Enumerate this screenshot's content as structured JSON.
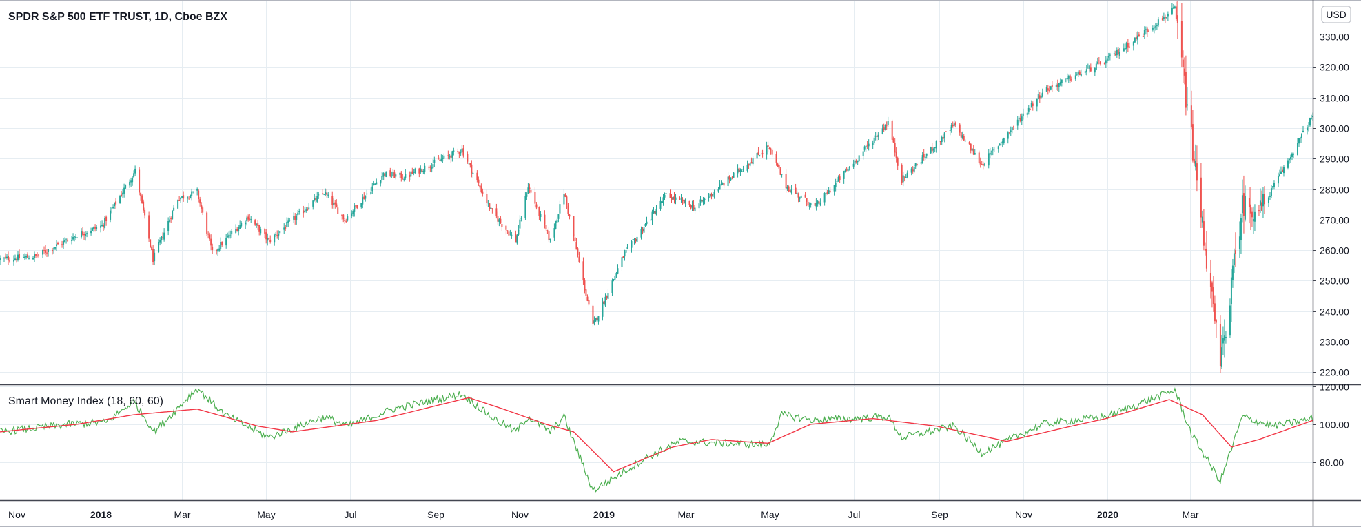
{
  "chart_data": [
    {
      "type": "candlestick",
      "title": "SPDR S&P 500 ETF TRUST, 1D, Cboe BZX",
      "currency": "USD",
      "y_ticks": [
        "330.00",
        "320.00",
        "310.00",
        "300.00",
        "290.00",
        "280.00",
        "270.00",
        "260.00",
        "250.00",
        "240.00",
        "230.00",
        "220.00"
      ],
      "ylim": [
        216,
        342
      ],
      "x_ticks": [
        "Nov",
        "2018",
        "Mar",
        "May",
        "Jul",
        "Sep",
        "Nov",
        "2019",
        "Mar",
        "May",
        "Jul",
        "Sep",
        "Nov",
        "2020",
        "Mar"
      ],
      "xlim": [
        "2017-10-20",
        "2020-05-29"
      ],
      "up_color": "#26a69a",
      "down_color": "#ef5350",
      "price_path": [
        [
          "2017-10-20",
          257
        ],
        [
          "2017-11-15",
          258
        ],
        [
          "2017-12-15",
          265
        ],
        [
          "2018-01-02",
          268
        ],
        [
          "2018-01-26",
          286
        ],
        [
          "2018-02-08",
          257
        ],
        [
          "2018-02-26",
          277
        ],
        [
          "2018-03-12",
          279
        ],
        [
          "2018-03-23",
          259
        ],
        [
          "2018-04-18",
          271
        ],
        [
          "2018-05-03",
          263
        ],
        [
          "2018-06-12",
          279
        ],
        [
          "2018-06-27",
          270
        ],
        [
          "2018-07-25",
          285
        ],
        [
          "2018-08-10",
          284
        ],
        [
          "2018-09-20",
          293
        ],
        [
          "2018-10-11",
          273
        ],
        [
          "2018-10-29",
          263
        ],
        [
          "2018-11-07",
          281
        ],
        [
          "2018-11-23",
          263
        ],
        [
          "2018-12-03",
          279
        ],
        [
          "2018-12-24",
          235
        ],
        [
          "2019-01-15",
          258
        ],
        [
          "2019-02-15",
          278
        ],
        [
          "2019-03-08",
          274
        ],
        [
          "2019-04-30",
          294
        ],
        [
          "2019-05-13",
          281
        ],
        [
          "2019-06-03",
          274
        ],
        [
          "2019-07-26",
          302
        ],
        [
          "2019-08-05",
          283
        ],
        [
          "2019-09-12",
          301
        ],
        [
          "2019-10-02",
          288
        ],
        [
          "2019-11-15",
          312
        ],
        [
          "2019-12-31",
          322
        ],
        [
          "2020-02-19",
          339
        ],
        [
          "2020-03-23",
          222
        ],
        [
          "2020-04-08",
          275
        ],
        [
          "2020-04-21",
          273
        ],
        [
          "2020-05-29",
          304
        ]
      ]
    },
    {
      "type": "line",
      "title": "Smart Money Index (18, 60, 60)",
      "y_ticks": [
        "120.00",
        "100.00",
        "80.00"
      ],
      "ylim": [
        60,
        121
      ],
      "series": [
        {
          "color": "#4caf50",
          "path": [
            [
              "2017-10-20",
              96
            ],
            [
              "2017-12-10",
              100
            ],
            [
              "2018-01-05",
              101
            ],
            [
              "2018-01-25",
              112
            ],
            [
              "2018-02-09",
              96
            ],
            [
              "2018-03-12",
              119
            ],
            [
              "2018-04-01",
              105
            ],
            [
              "2018-05-03",
              93
            ],
            [
              "2018-06-12",
              104
            ],
            [
              "2018-06-29",
              99
            ],
            [
              "2018-08-01",
              108
            ],
            [
              "2018-09-20",
              116
            ],
            [
              "2018-10-11",
              104
            ],
            [
              "2018-10-29",
              96
            ],
            [
              "2018-11-07",
              104
            ],
            [
              "2018-11-23",
              96
            ],
            [
              "2018-12-03",
              104
            ],
            [
              "2018-12-24",
              65
            ],
            [
              "2019-01-31",
              82
            ],
            [
              "2019-02-25",
              91
            ],
            [
              "2019-04-30",
              89
            ],
            [
              "2019-05-10",
              105
            ],
            [
              "2019-06-03",
              102
            ],
            [
              "2019-07-26",
              104
            ],
            [
              "2019-08-05",
              93
            ],
            [
              "2019-09-12",
              99
            ],
            [
              "2019-10-02",
              85
            ],
            [
              "2019-11-15",
              100
            ],
            [
              "2019-12-31",
              104
            ],
            [
              "2020-02-19",
              118
            ],
            [
              "2020-03-02",
              95
            ],
            [
              "2020-03-23",
              70
            ],
            [
              "2020-04-08",
              104
            ],
            [
              "2020-04-30",
              99
            ],
            [
              "2020-05-29",
              103
            ]
          ]
        },
        {
          "color": "#f23645",
          "path": [
            [
              "2017-10-20",
              96
            ],
            [
              "2017-12-15",
              100
            ],
            [
              "2018-01-25",
              105
            ],
            [
              "2018-03-12",
              108
            ],
            [
              "2018-04-25",
              99
            ],
            [
              "2018-05-20",
              96
            ],
            [
              "2018-07-20",
              102
            ],
            [
              "2018-09-25",
              114
            ],
            [
              "2018-10-20",
              108
            ],
            [
              "2018-11-20",
              100
            ],
            [
              "2018-12-10",
              96
            ],
            [
              "2019-01-08",
              75
            ],
            [
              "2019-02-20",
              88
            ],
            [
              "2019-03-20",
              92
            ],
            [
              "2019-04-30",
              90
            ],
            [
              "2019-05-31",
              100
            ],
            [
              "2019-07-15",
              103
            ],
            [
              "2019-08-30",
              99
            ],
            [
              "2019-10-20",
              91
            ],
            [
              "2019-11-30",
              98
            ],
            [
              "2019-12-31",
              103
            ],
            [
              "2020-02-15",
              113
            ],
            [
              "2020-03-10",
              105
            ],
            [
              "2020-03-31",
              88
            ],
            [
              "2020-04-20",
              92
            ],
            [
              "2020-05-29",
              102
            ]
          ]
        }
      ]
    }
  ]
}
